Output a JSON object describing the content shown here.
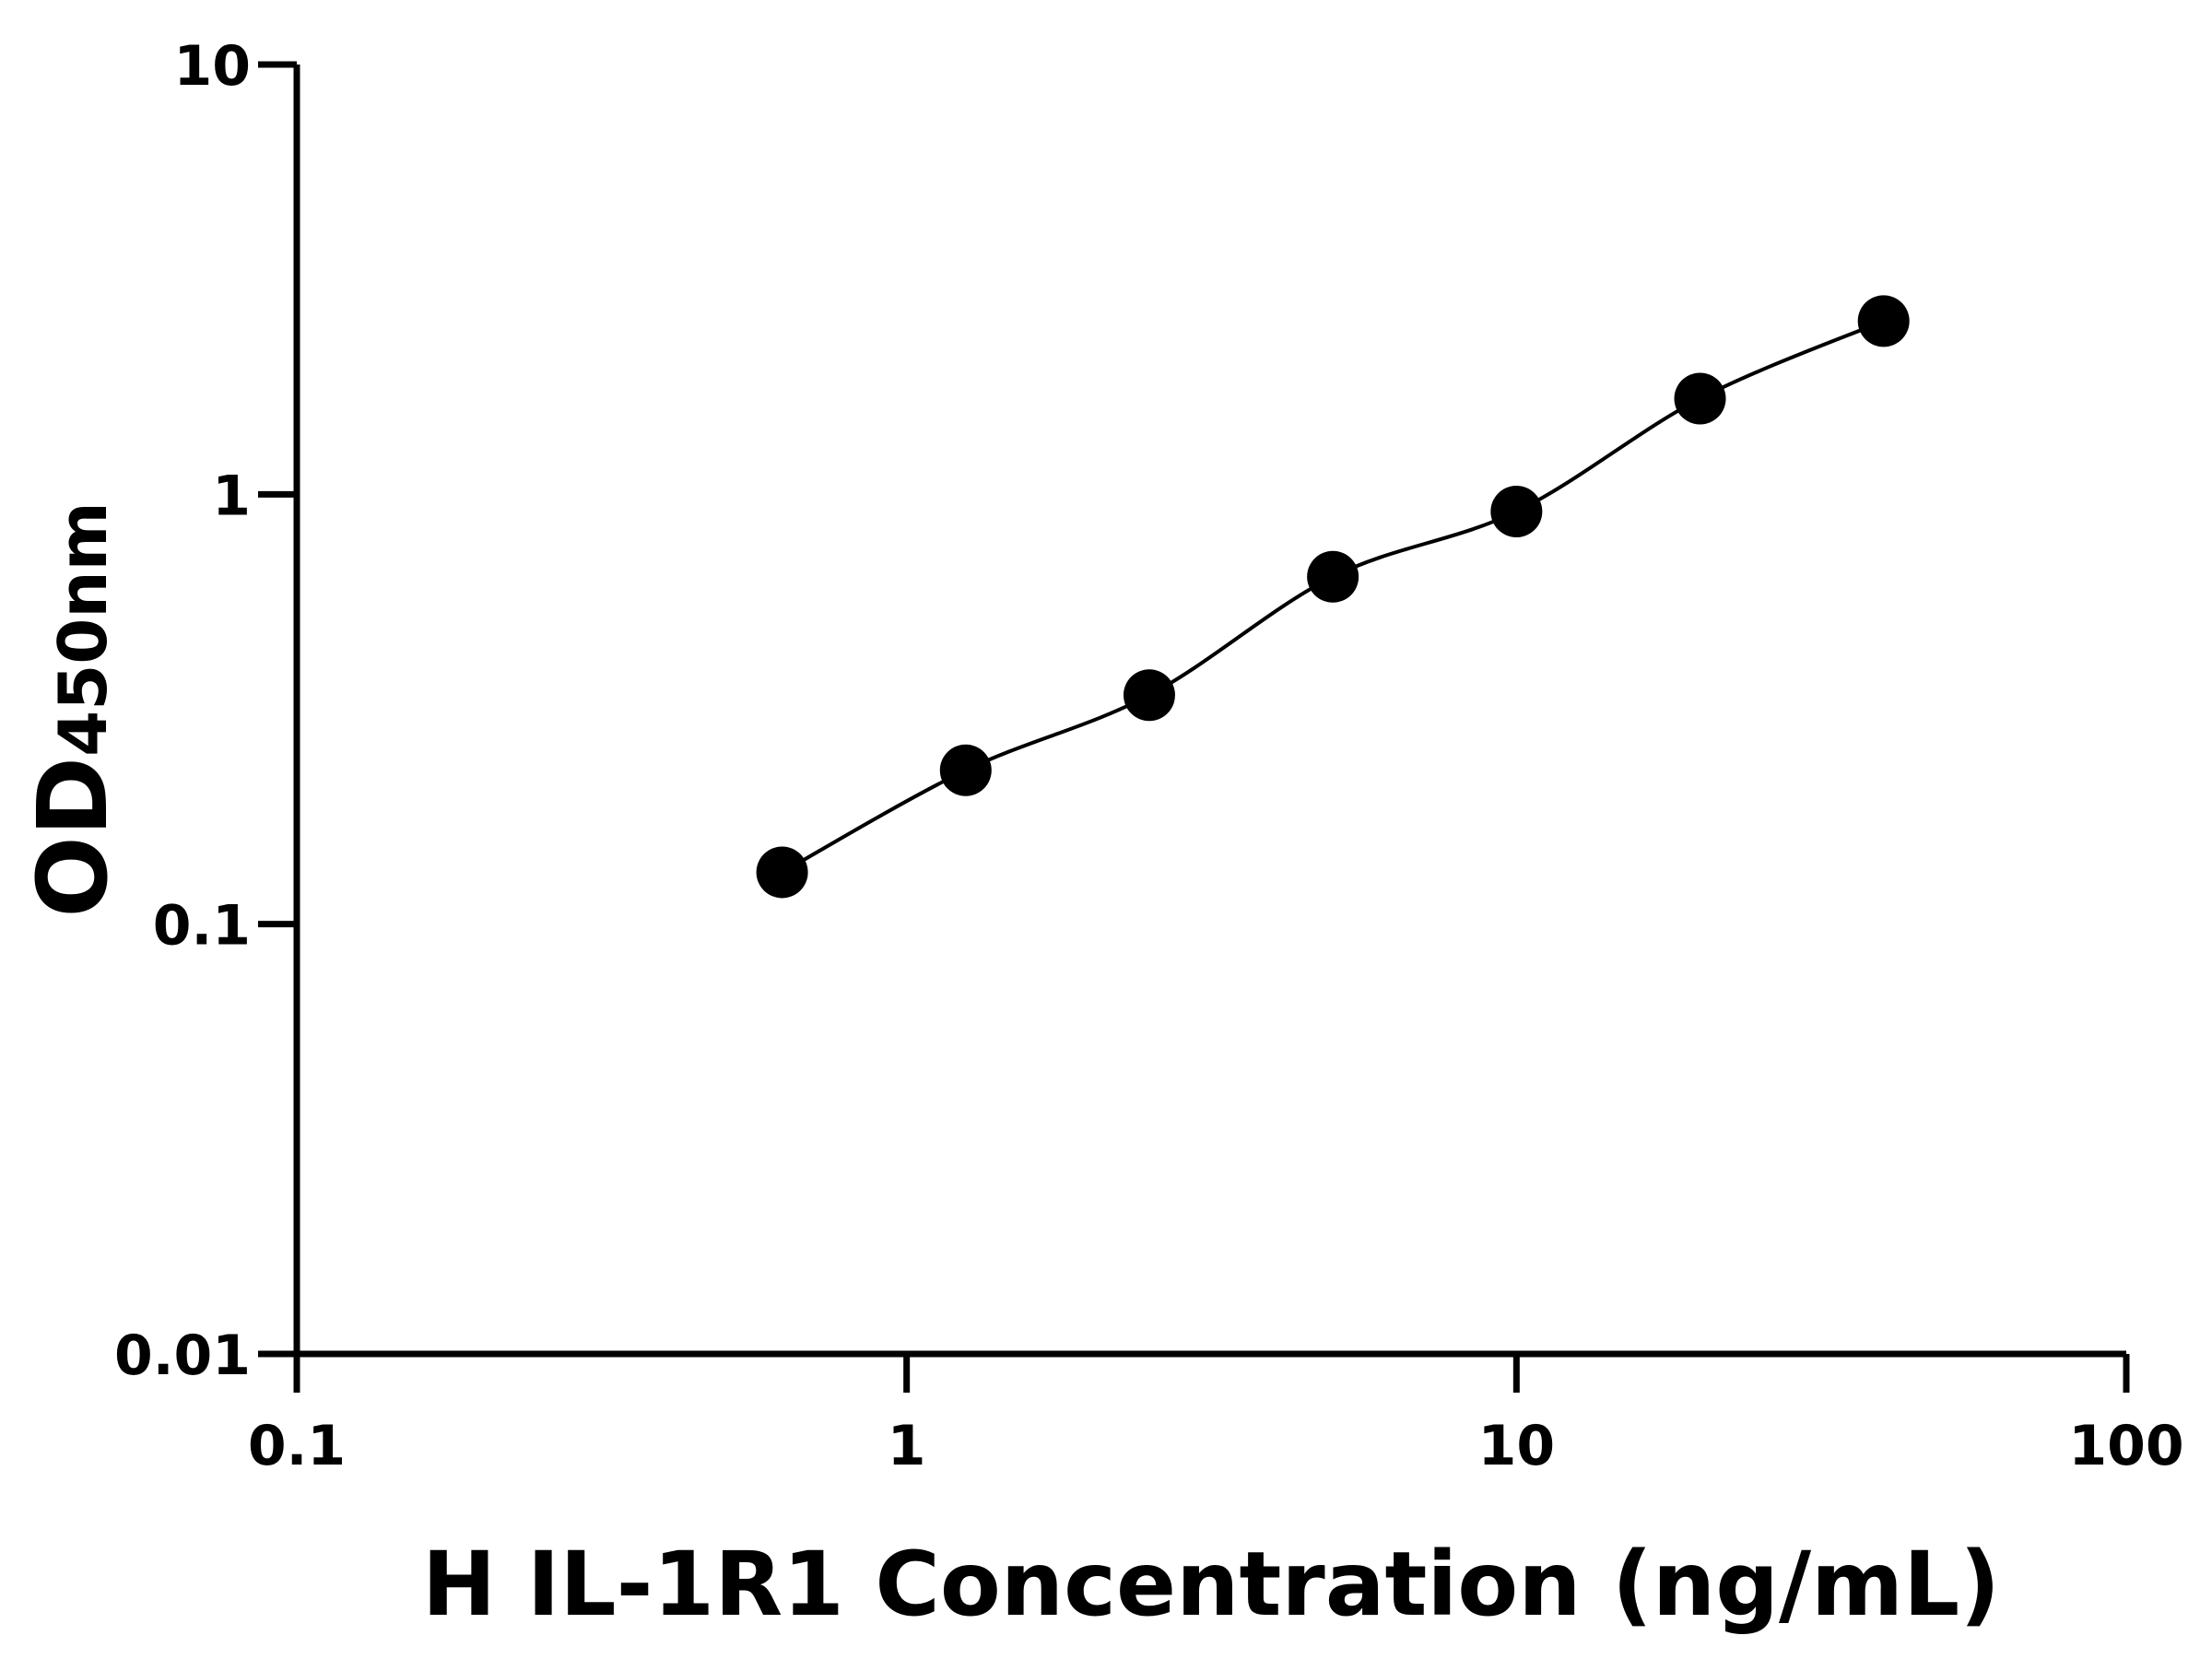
{
  "chart_data": {
    "type": "scatter",
    "xlabel": "H IL-1R1 Concentration (ng/mL)",
    "ylabel_main": "OD",
    "ylabel_sub": "450nm",
    "x_scale": "log",
    "y_scale": "log",
    "xlim": [
      0.1,
      100
    ],
    "ylim": [
      0.01,
      10
    ],
    "x_ticks": [
      "0.1",
      "1",
      "10",
      "100"
    ],
    "y_ticks": [
      "0.01",
      "0.1",
      "1",
      "10"
    ],
    "grid": false,
    "fit_curve": true,
    "series": [
      {
        "x": [
          0.625,
          1.25,
          2.5,
          5,
          10,
          20,
          40
        ],
        "y": [
          0.132,
          0.228,
          0.341,
          0.643,
          0.912,
          1.67,
          2.53
        ]
      }
    ],
    "colors": {
      "marker": "#000000",
      "axis": "#000000"
    }
  }
}
